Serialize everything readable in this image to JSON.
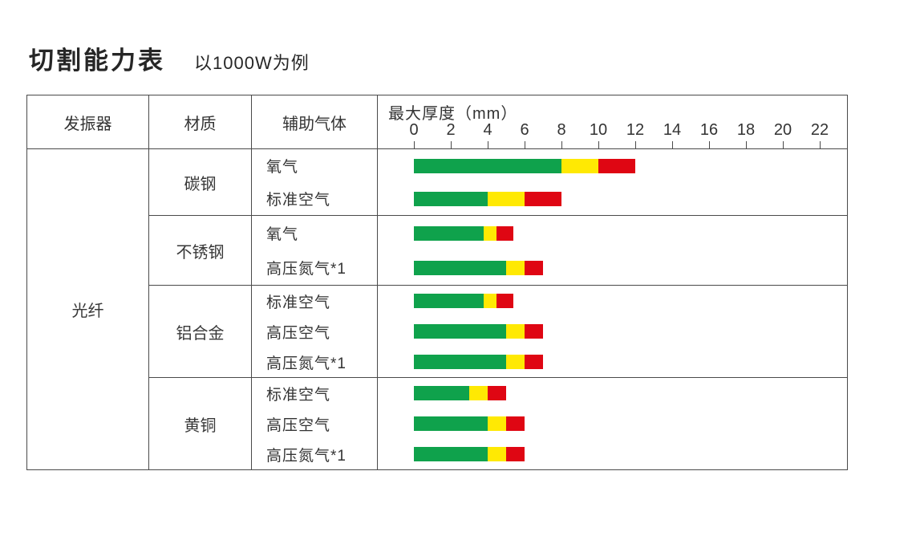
{
  "title": "切割能力表",
  "subtitle": "以1000W为例",
  "table": {
    "headers": {
      "oscillator": "发振器",
      "material": "材质",
      "gas": "辅助气体"
    },
    "axis_title": "最大厚度（mm）",
    "oscillator_value": "光纤"
  },
  "colors": {
    "green": "#0fa24c",
    "yellow": "#ffe903",
    "red": "#df0613",
    "border": "#4a4a4a",
    "text": "#333333"
  },
  "chart_data": {
    "type": "bar",
    "title": "切割能力表 以1000W为例",
    "xlabel": "最大厚度（mm）",
    "x_ticks": [
      0,
      2,
      4,
      6,
      8,
      10,
      12,
      14,
      16,
      18,
      20,
      22
    ],
    "xlim": [
      0,
      23
    ],
    "grid": false,
    "legend_position": "none",
    "segment_colors": {
      "green": "#0fa24c",
      "yellow": "#ffe903",
      "red": "#df0613"
    },
    "rows": [
      {
        "material": "碳钢",
        "gas": "氧气",
        "segments": [
          {
            "color": "green",
            "from": 0,
            "to": 8
          },
          {
            "color": "yellow",
            "from": 8,
            "to": 10
          },
          {
            "color": "red",
            "from": 10,
            "to": 12
          }
        ]
      },
      {
        "material": "碳钢",
        "gas": "标准空气",
        "segments": [
          {
            "color": "green",
            "from": 0,
            "to": 4
          },
          {
            "color": "yellow",
            "from": 4,
            "to": 6
          },
          {
            "color": "red",
            "from": 6,
            "to": 8
          }
        ]
      },
      {
        "material": "不锈钢",
        "gas": "氧气",
        "segments": [
          {
            "color": "green",
            "from": 0,
            "to": 3.8
          },
          {
            "color": "yellow",
            "from": 3.8,
            "to": 4.5
          },
          {
            "color": "red",
            "from": 4.5,
            "to": 5.4
          }
        ]
      },
      {
        "material": "不锈钢",
        "gas": "高压氮气*1",
        "segments": [
          {
            "color": "green",
            "from": 0,
            "to": 5
          },
          {
            "color": "yellow",
            "from": 5,
            "to": 6
          },
          {
            "color": "red",
            "from": 6,
            "to": 7
          }
        ]
      },
      {
        "material": "铝合金",
        "gas": "标准空气",
        "segments": [
          {
            "color": "green",
            "from": 0,
            "to": 3.8
          },
          {
            "color": "yellow",
            "from": 3.8,
            "to": 4.5
          },
          {
            "color": "red",
            "from": 4.5,
            "to": 5.4
          }
        ]
      },
      {
        "material": "铝合金",
        "gas": "高压空气",
        "segments": [
          {
            "color": "green",
            "from": 0,
            "to": 5
          },
          {
            "color": "yellow",
            "from": 5,
            "to": 6
          },
          {
            "color": "red",
            "from": 6,
            "to": 7
          }
        ]
      },
      {
        "material": "铝合金",
        "gas": "高压氮气*1",
        "segments": [
          {
            "color": "green",
            "from": 0,
            "to": 5
          },
          {
            "color": "yellow",
            "from": 5,
            "to": 6
          },
          {
            "color": "red",
            "from": 6,
            "to": 7
          }
        ]
      },
      {
        "material": "黄铜",
        "gas": "标准空气",
        "segments": [
          {
            "color": "green",
            "from": 0,
            "to": 3
          },
          {
            "color": "yellow",
            "from": 3,
            "to": 4
          },
          {
            "color": "red",
            "from": 4,
            "to": 5
          }
        ]
      },
      {
        "material": "黄铜",
        "gas": "高压空气",
        "segments": [
          {
            "color": "green",
            "from": 0,
            "to": 4
          },
          {
            "color": "yellow",
            "from": 4,
            "to": 5
          },
          {
            "color": "red",
            "from": 5,
            "to": 6
          }
        ]
      },
      {
        "material": "黄铜",
        "gas": "高压氮气*1",
        "segments": [
          {
            "color": "green",
            "from": 0,
            "to": 4
          },
          {
            "color": "yellow",
            "from": 4,
            "to": 5
          },
          {
            "color": "red",
            "from": 5,
            "to": 6
          }
        ]
      }
    ]
  }
}
